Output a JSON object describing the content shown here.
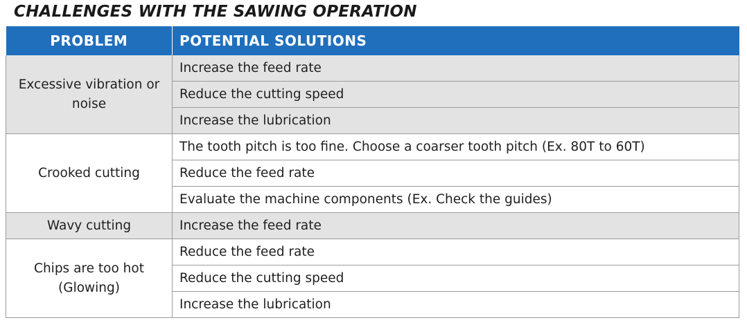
{
  "title": "CHALLENGES WITH THE SAWING OPERATION",
  "headers": {
    "problem": "PROBLEM",
    "solutions": "POTENTIAL SOLUTIONS"
  },
  "rows": [
    {
      "problem": "Excessive vibration or noise",
      "solutions": [
        "Increase the feed rate",
        "Reduce the cutting speed",
        "Increase the lubrication"
      ]
    },
    {
      "problem": "Crooked cutting",
      "solutions": [
        "The tooth pitch is too fine. Choose a coarser tooth pitch (Ex. 80T to 60T)",
        "Reduce the feed rate",
        "Evaluate the machine components (Ex. Check the guides)"
      ]
    },
    {
      "problem": "Wavy cutting",
      "solutions": [
        "Increase the feed rate"
      ]
    },
    {
      "problem": "Chips are too hot (Glowing)",
      "solutions": [
        "Reduce the feed rate",
        "Reduce the cutting speed",
        "Increase the lubrication"
      ]
    }
  ],
  "colors": {
    "header_bg": "#1f6fbd",
    "shaded_row": "#e3e3e3",
    "border": "#9a9a9a"
  }
}
